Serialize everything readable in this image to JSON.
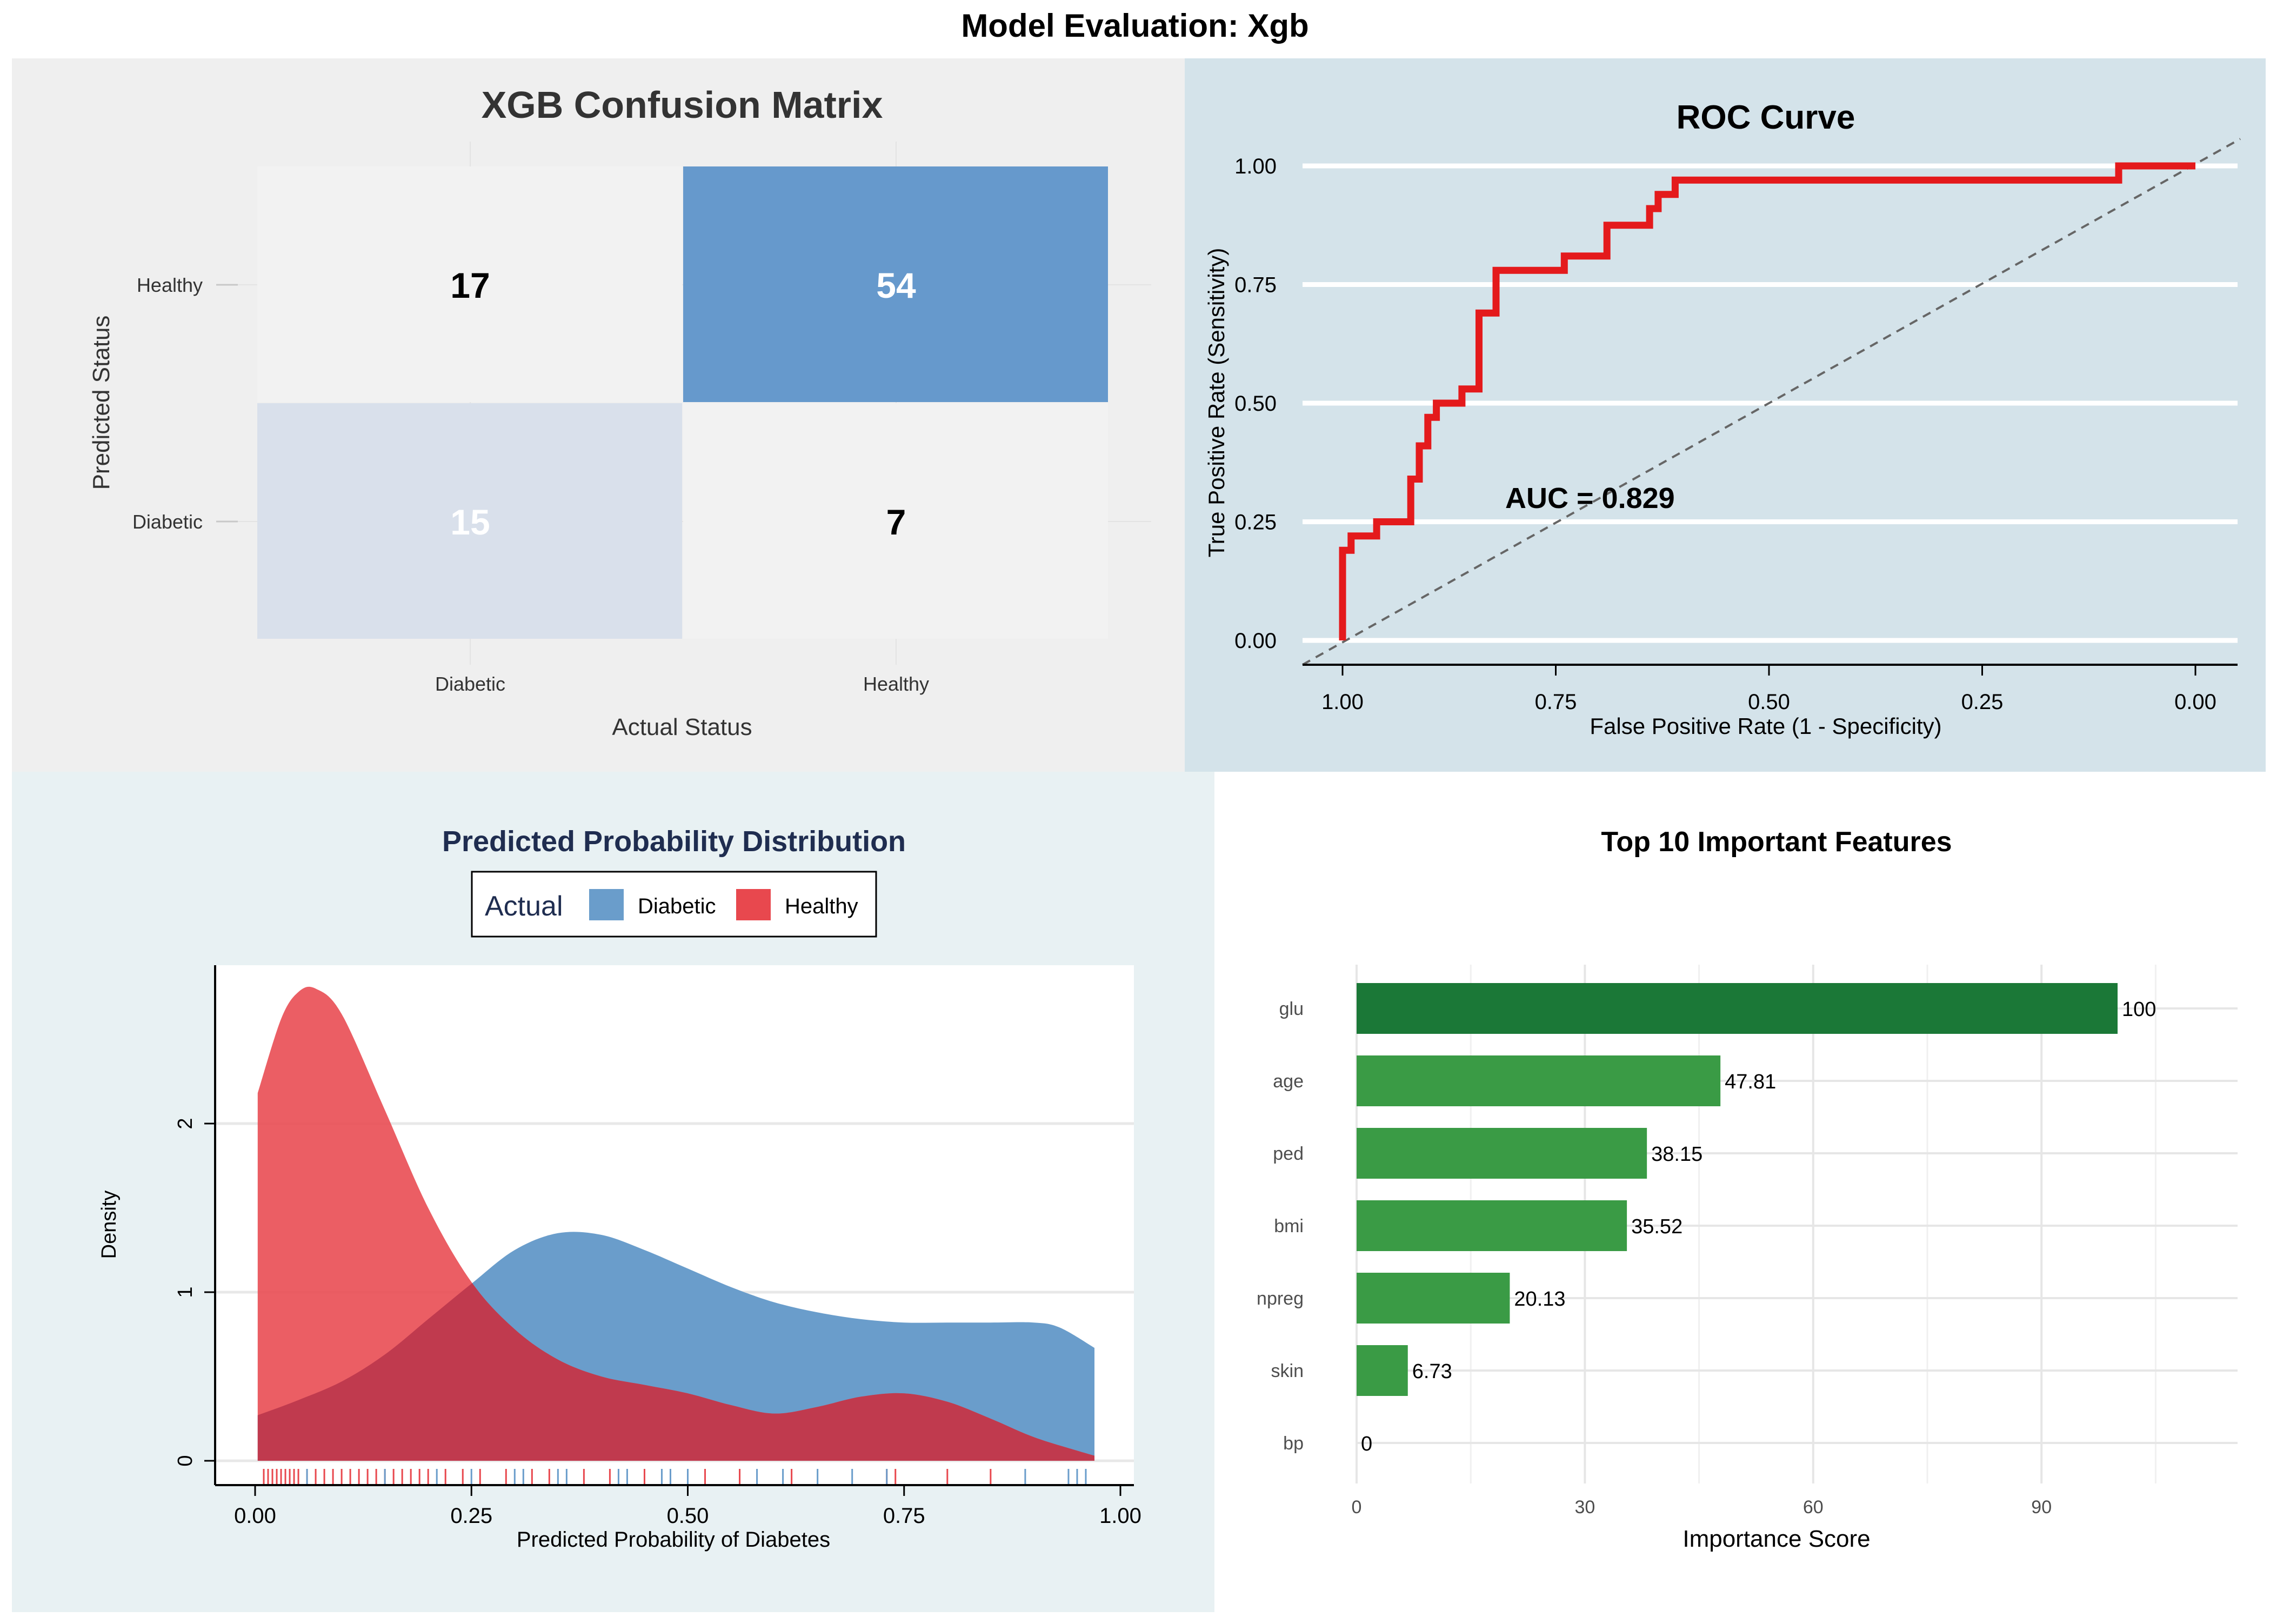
{
  "page": {
    "title": "Model Evaluation: Xgb"
  },
  "colors": {
    "panel_tl_bg": "#efefef",
    "panel_tr_bg": "#d4e3ea",
    "panel_bl_bg": "#e8f1f3",
    "panel_br_bg": "#ffffff",
    "confusion_high": "#6699cc",
    "confusion_low": "#d9e0eb",
    "confusion_base": "#f2f2f2",
    "roc_line": "#e41a1c",
    "diagonal": "#666666",
    "diabetic": "#6a9dcb",
    "healthy": "#e8484e",
    "overlap": "#c03a4e",
    "bar_top": "#1b7837",
    "bar_rest": "#3a9b45",
    "density_title": "#1f2d50"
  },
  "chart_data": [
    {
      "type": "heatmap",
      "title": "XGB Confusion Matrix",
      "xlabel": "Actual Status",
      "ylabel": "Predicted Status",
      "x_categories": [
        "Diabetic",
        "Healthy"
      ],
      "y_categories": [
        "Diabetic",
        "Healthy"
      ],
      "cells": [
        {
          "actual": "Diabetic",
          "predicted": "Healthy",
          "value": 17
        },
        {
          "actual": "Healthy",
          "predicted": "Healthy",
          "value": 54
        },
        {
          "actual": "Diabetic",
          "predicted": "Diabetic",
          "value": 15
        },
        {
          "actual": "Healthy",
          "predicted": "Diabetic",
          "value": 7
        }
      ]
    },
    {
      "type": "line",
      "title": "ROC Curve",
      "xlabel": "False Positive Rate (1 - Specificity)",
      "ylabel": "True Positive Rate (Sensitivity)",
      "x_reversed": true,
      "xlim": [
        1.0,
        0.0
      ],
      "ylim": [
        0.0,
        1.0
      ],
      "x_ticks": [
        "1.00",
        "0.75",
        "0.50",
        "0.25",
        "0.00"
      ],
      "y_ticks": [
        "0.00",
        "0.25",
        "0.50",
        "0.75",
        "1.00"
      ],
      "annotation": "AUC = 0.829",
      "diagonal": true,
      "points": [
        [
          1.0,
          0.0
        ],
        [
          1.0,
          0.19
        ],
        [
          0.99,
          0.19
        ],
        [
          0.99,
          0.22
        ],
        [
          0.96,
          0.22
        ],
        [
          0.96,
          0.25
        ],
        [
          0.96,
          0.25
        ],
        [
          0.92,
          0.25
        ],
        [
          0.92,
          0.34
        ],
        [
          0.91,
          0.34
        ],
        [
          0.91,
          0.41
        ],
        [
          0.9,
          0.41
        ],
        [
          0.9,
          0.47
        ],
        [
          0.89,
          0.47
        ],
        [
          0.89,
          0.5
        ],
        [
          0.86,
          0.5
        ],
        [
          0.86,
          0.53
        ],
        [
          0.84,
          0.53
        ],
        [
          0.84,
          0.69
        ],
        [
          0.82,
          0.69
        ],
        [
          0.82,
          0.78
        ],
        [
          0.74,
          0.78
        ],
        [
          0.74,
          0.81
        ],
        [
          0.69,
          0.81
        ],
        [
          0.69,
          0.875
        ],
        [
          0.64,
          0.875
        ],
        [
          0.64,
          0.91
        ],
        [
          0.63,
          0.91
        ],
        [
          0.63,
          0.94
        ],
        [
          0.61,
          0.94
        ],
        [
          0.61,
          0.97
        ],
        [
          0.41,
          0.97
        ],
        [
          0.09,
          0.97
        ],
        [
          0.09,
          1.0
        ],
        [
          0.0,
          1.0
        ]
      ]
    },
    {
      "type": "area",
      "title": "Predicted Probability Distribution",
      "xlabel": "Predicted Probability of Diabetes",
      "ylabel": "Density",
      "xlim": [
        -0.05,
        1.02
      ],
      "ylim": [
        -0.13,
        2.9
      ],
      "x_ticks": [
        "0.00",
        "0.25",
        "0.50",
        "0.75",
        "1.00"
      ],
      "y_ticks": [
        "0",
        "1",
        "2"
      ],
      "legend": {
        "title": "Actual",
        "placement": "top-center"
      },
      "series": [
        {
          "name": "Diabetic",
          "x": [
            0.003,
            0.05,
            0.1,
            0.15,
            0.2,
            0.25,
            0.3,
            0.35,
            0.4,
            0.45,
            0.5,
            0.55,
            0.6,
            0.65,
            0.7,
            0.75,
            0.8,
            0.85,
            0.9,
            0.93,
            0.97
          ],
          "y": [
            0.27,
            0.36,
            0.47,
            0.63,
            0.84,
            1.05,
            1.25,
            1.35,
            1.34,
            1.25,
            1.14,
            1.03,
            0.94,
            0.88,
            0.84,
            0.82,
            0.82,
            0.82,
            0.82,
            0.79,
            0.67
          ]
        },
        {
          "name": "Healthy",
          "x": [
            0.003,
            0.03,
            0.05,
            0.07,
            0.1,
            0.15,
            0.2,
            0.25,
            0.3,
            0.35,
            0.4,
            0.45,
            0.5,
            0.55,
            0.6,
            0.65,
            0.7,
            0.75,
            0.8,
            0.85,
            0.9,
            0.95,
            0.97
          ],
          "y": [
            2.18,
            2.62,
            2.78,
            2.8,
            2.65,
            2.08,
            1.5,
            1.06,
            0.78,
            0.6,
            0.5,
            0.45,
            0.4,
            0.33,
            0.28,
            0.32,
            0.38,
            0.4,
            0.35,
            0.25,
            0.14,
            0.06,
            0.03
          ]
        }
      ],
      "rug": {
        "Healthy": [
          0.01,
          0.015,
          0.02,
          0.025,
          0.03,
          0.035,
          0.04,
          0.045,
          0.05,
          0.06,
          0.07,
          0.08,
          0.09,
          0.1,
          0.11,
          0.12,
          0.13,
          0.14,
          0.15,
          0.16,
          0.17,
          0.18,
          0.19,
          0.2,
          0.22,
          0.24,
          0.26,
          0.29,
          0.32,
          0.34,
          0.38,
          0.41,
          0.45,
          0.52,
          0.56,
          0.62,
          0.73,
          0.74,
          0.8,
          0.85
        ],
        "Diabetic": [
          0.06,
          0.15,
          0.21,
          0.25,
          0.3,
          0.31,
          0.35,
          0.36,
          0.42,
          0.43,
          0.47,
          0.48,
          0.5,
          0.58,
          0.61,
          0.65,
          0.69,
          0.73,
          0.89,
          0.94,
          0.95,
          0.96
        ]
      }
    },
    {
      "type": "bar",
      "orientation": "horizontal",
      "title": "Top 10 Important Features",
      "xlabel": "Importance Score",
      "ylabel": "",
      "xlim": [
        0,
        115
      ],
      "x_ticks": [
        "0",
        "30",
        "60",
        "90"
      ],
      "categories": [
        "glu",
        "age",
        "ped",
        "bmi",
        "npreg",
        "skin",
        "bp"
      ],
      "values": [
        100,
        47.81,
        38.15,
        35.52,
        20.13,
        6.73,
        0
      ],
      "value_labels": [
        "100",
        "47.81",
        "38.15",
        "35.52",
        "20.13",
        "6.73",
        "0"
      ]
    }
  ]
}
